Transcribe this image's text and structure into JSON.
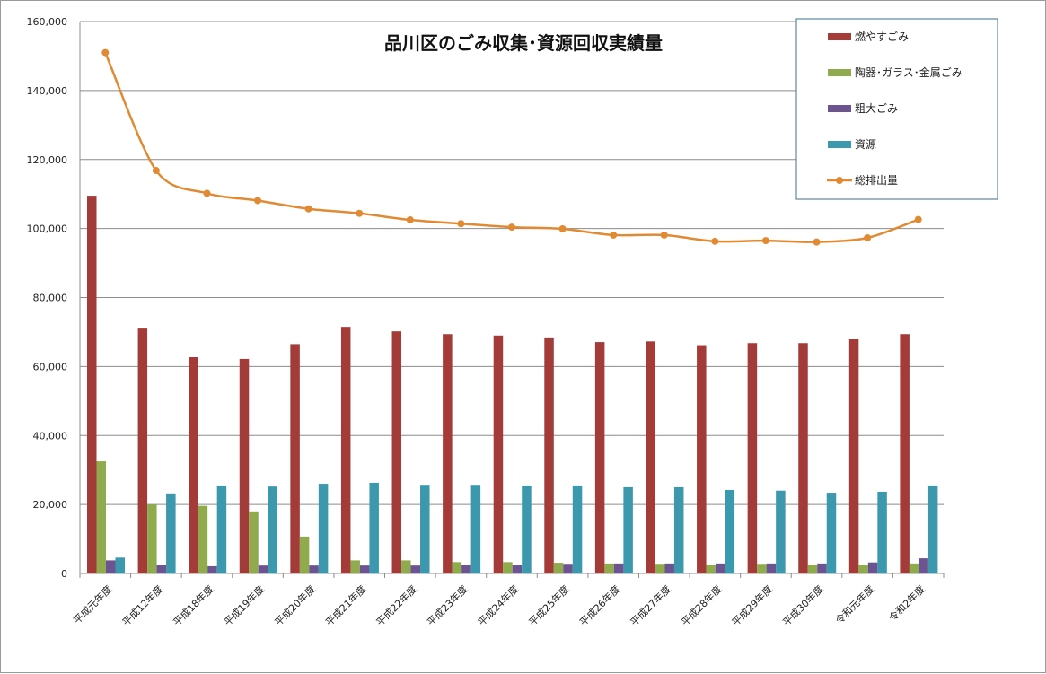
{
  "chart_data": {
    "type": "bar",
    "title": "品川区のごみ収集･資源回収実績量",
    "xlabel": "",
    "ylabel": "",
    "ylim": [
      0,
      160000
    ],
    "yticks": [
      "0",
      "20,000",
      "40,000",
      "60,000",
      "80,000",
      "100,000",
      "120,000",
      "140,000",
      "160,000"
    ],
    "grid": true,
    "legend_position": "top-right",
    "categories": [
      "平成元年度",
      "平成12年度",
      "平成18年度",
      "平成19年度",
      "平成20年度",
      "平成21年度",
      "平成22年度",
      "平成23年度",
      "平成24年度",
      "平成25年度",
      "平成26年度",
      "平成27年度",
      "平成28年度",
      "平成29年度",
      "平成30年度",
      "令和元年度",
      "令和2年度"
    ],
    "series": [
      {
        "name": "燃やすごみ",
        "kind": "bar",
        "color": "#a33b39",
        "values": [
          109500,
          71000,
          62700,
          62200,
          66500,
          71500,
          70200,
          69400,
          69000,
          68200,
          67100,
          67300,
          66200,
          66800,
          66800,
          67900,
          69400
        ]
      },
      {
        "name": "陶器･ガラス･金属ごみ",
        "kind": "bar",
        "color": "#8fab4d",
        "values": [
          32500,
          20000,
          19600,
          18000,
          10700,
          3800,
          3800,
          3300,
          3300,
          3100,
          2900,
          2800,
          2600,
          2800,
          2600,
          2600,
          2900
        ]
      },
      {
        "name": "粗大ごみ",
        "kind": "bar",
        "color": "#6b548f",
        "values": [
          3800,
          2600,
          2100,
          2300,
          2300,
          2300,
          2300,
          2600,
          2600,
          2800,
          2900,
          2900,
          2900,
          2900,
          2900,
          3200,
          4400
        ]
      },
      {
        "name": "資源",
        "kind": "bar",
        "color": "#3c98ac",
        "values": [
          4600,
          23200,
          25500,
          25200,
          26000,
          26300,
          25700,
          25700,
          25500,
          25500,
          25000,
          25000,
          24200,
          24000,
          23400,
          23700,
          25500
        ]
      },
      {
        "name": "総排出量",
        "kind": "line",
        "color": "#e08a34",
        "values": [
          151000,
          116800,
          110200,
          108100,
          105700,
          104400,
          102500,
          101400,
          100400,
          99900,
          98100,
          98100,
          96300,
          96500,
          96100,
          97300,
          102600
        ]
      }
    ]
  }
}
